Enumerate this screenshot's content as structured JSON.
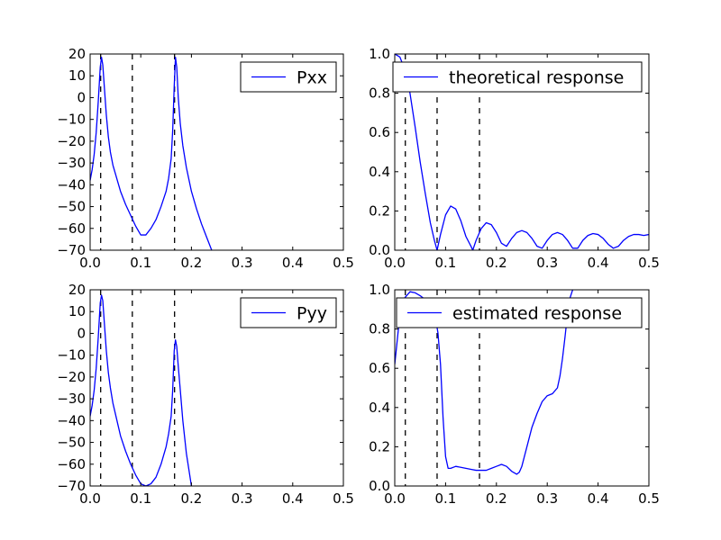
{
  "chart_data": [
    {
      "id": "pxx",
      "type": "line",
      "xlim": [
        0,
        0.5
      ],
      "ylim": [
        -70,
        20
      ],
      "xticks": [
        0,
        0.1,
        0.2,
        0.3,
        0.4,
        0.5
      ],
      "xtick_labels": [
        "0.0",
        "0.1",
        "0.2",
        "0.3",
        "0.4",
        "0.5"
      ],
      "yticks": [
        20,
        10,
        0,
        -10,
        -20,
        -30,
        -40,
        -50,
        -60,
        -70
      ],
      "ytick_labels": [
        "20",
        "10",
        "0",
        "−10",
        "−20",
        "−30",
        "−40",
        "−50",
        "−60",
        "−70"
      ],
      "vlines": [
        0.0208,
        0.0833,
        0.1667
      ],
      "legend_position": "upper-right",
      "series": [
        {
          "name": "Pxx",
          "color": "#0000ff",
          "x": [
            0,
            0.004,
            0.008,
            0.012,
            0.016,
            0.02,
            0.0225,
            0.025,
            0.028,
            0.032,
            0.036,
            0.04,
            0.045,
            0.05,
            0.055,
            0.06,
            0.07,
            0.08,
            0.09,
            0.1,
            0.11,
            0.12,
            0.13,
            0.14,
            0.15,
            0.155,
            0.16,
            0.163,
            0.166,
            0.1685,
            0.171,
            0.174,
            0.178,
            0.183,
            0.19,
            0.2,
            0.21,
            0.22,
            0.23,
            0.24
          ],
          "y": [
            -38,
            -33,
            -26,
            -16,
            -2,
            14,
            18.5,
            15,
            5,
            -8,
            -18,
            -25,
            -31,
            -35,
            -39,
            -43,
            -49,
            -54,
            -59,
            -63,
            -63,
            -60,
            -56,
            -50,
            -43,
            -37,
            -28,
            -15,
            5,
            18.5,
            14,
            0,
            -12,
            -22,
            -32,
            -43,
            -51,
            -58,
            -64,
            -70
          ]
        }
      ]
    },
    {
      "id": "theoretical",
      "type": "line",
      "xlim": [
        0,
        0.5
      ],
      "ylim": [
        0,
        1
      ],
      "xticks": [
        0,
        0.1,
        0.2,
        0.3,
        0.4,
        0.5
      ],
      "xtick_labels": [
        "0.0",
        "0.1",
        "0.2",
        "0.3",
        "0.4",
        "0.5"
      ],
      "yticks": [
        0,
        0.2,
        0.4,
        0.6,
        0.8,
        1
      ],
      "ytick_labels": [
        "0.0",
        "0.2",
        "0.4",
        "0.6",
        "0.8",
        "1.0"
      ],
      "vlines": [
        0.0208,
        0.0833,
        0.1667
      ],
      "legend_position": "upper-right",
      "series": [
        {
          "name": "theoretical response",
          "color": "#0000ff",
          "x": [
            0,
            0.01,
            0.02,
            0.03,
            0.04,
            0.05,
            0.06,
            0.07,
            0.078,
            0.0833,
            0.09,
            0.1,
            0.11,
            0.12,
            0.13,
            0.14,
            0.15,
            0.1535,
            0.16,
            0.17,
            0.18,
            0.19,
            0.2,
            0.21,
            0.22,
            0.23,
            0.24,
            0.25,
            0.26,
            0.27,
            0.28,
            0.29,
            0.3,
            0.31,
            0.32,
            0.33,
            0.34,
            0.35,
            0.36,
            0.37,
            0.38,
            0.39,
            0.4,
            0.41,
            0.42,
            0.43,
            0.44,
            0.45,
            0.46,
            0.47,
            0.48,
            0.49,
            0.5
          ],
          "y": [
            1.0,
            0.985,
            0.92,
            0.8,
            0.63,
            0.45,
            0.29,
            0.14,
            0.05,
            0.0,
            0.08,
            0.18,
            0.225,
            0.21,
            0.15,
            0.07,
            0.02,
            0.0,
            0.05,
            0.11,
            0.14,
            0.13,
            0.09,
            0.035,
            0.02,
            0.06,
            0.09,
            0.1,
            0.09,
            0.06,
            0.02,
            0.01,
            0.05,
            0.08,
            0.09,
            0.08,
            0.05,
            0.01,
            0.01,
            0.05,
            0.075,
            0.085,
            0.08,
            0.06,
            0.03,
            0.01,
            0.02,
            0.05,
            0.07,
            0.08,
            0.08,
            0.075,
            0.08
          ]
        }
      ]
    },
    {
      "id": "pyy",
      "type": "line",
      "xlim": [
        0,
        0.5
      ],
      "ylim": [
        -70,
        20
      ],
      "xticks": [
        0,
        0.1,
        0.2,
        0.3,
        0.4,
        0.5
      ],
      "xtick_labels": [
        "0.0",
        "0.1",
        "0.2",
        "0.3",
        "0.4",
        "0.5"
      ],
      "yticks": [
        20,
        10,
        0,
        -10,
        -20,
        -30,
        -40,
        -50,
        -60,
        -70
      ],
      "ytick_labels": [
        "20",
        "10",
        "0",
        "−10",
        "−20",
        "−30",
        "−40",
        "−50",
        "−60",
        "−70"
      ],
      "vlines": [
        0.0208,
        0.0833,
        0.1667
      ],
      "legend_position": "upper-right",
      "series": [
        {
          "name": "Pyy",
          "color": "#0000ff",
          "x": [
            0,
            0.004,
            0.008,
            0.012,
            0.016,
            0.02,
            0.0225,
            0.025,
            0.028,
            0.032,
            0.036,
            0.04,
            0.045,
            0.05,
            0.055,
            0.06,
            0.07,
            0.08,
            0.09,
            0.1,
            0.11,
            0.12,
            0.13,
            0.14,
            0.15,
            0.155,
            0.16,
            0.163,
            0.166,
            0.1685,
            0.171,
            0.174,
            0.178,
            0.183,
            0.19,
            0.2
          ],
          "y": [
            -38,
            -33,
            -26,
            -16,
            -2,
            14,
            17.5,
            15,
            5,
            -8,
            -18,
            -25,
            -32,
            -37,
            -42,
            -47,
            -54,
            -60,
            -65,
            -69,
            -70,
            -69,
            -66,
            -60,
            -52,
            -46,
            -38,
            -26,
            -8,
            -3,
            -6,
            -15,
            -26,
            -40,
            -55,
            -70
          ]
        }
      ]
    },
    {
      "id": "estimated",
      "type": "line",
      "xlim": [
        0,
        0.5
      ],
      "ylim": [
        0,
        1
      ],
      "xticks": [
        0,
        0.1,
        0.2,
        0.3,
        0.4,
        0.5
      ],
      "xtick_labels": [
        "0.0",
        "0.1",
        "0.2",
        "0.3",
        "0.4",
        "0.5"
      ],
      "yticks": [
        0,
        0.2,
        0.4,
        0.6,
        0.8,
        1
      ],
      "ytick_labels": [
        "0.0",
        "0.2",
        "0.4",
        "0.6",
        "0.8",
        "1.0"
      ],
      "vlines": [
        0.0208,
        0.0833,
        0.1667
      ],
      "legend_position": "upper-right",
      "series": [
        {
          "name": "estimated response",
          "color": "#0000ff",
          "x": [
            0,
            0.004,
            0.008,
            0.015,
            0.02,
            0.03,
            0.04,
            0.05,
            0.06,
            0.07,
            0.08,
            0.085,
            0.09,
            0.095,
            0.1,
            0.105,
            0.11,
            0.12,
            0.13,
            0.14,
            0.15,
            0.16,
            0.17,
            0.18,
            0.19,
            0.2,
            0.21,
            0.22,
            0.23,
            0.24,
            0.245,
            0.25,
            0.26,
            0.27,
            0.28,
            0.29,
            0.3,
            0.305,
            0.31,
            0.32,
            0.325,
            0.33,
            0.335,
            0.34,
            0.345,
            0.35
          ],
          "y": [
            0.62,
            0.72,
            0.82,
            0.92,
            0.96,
            0.99,
            0.985,
            0.97,
            0.95,
            0.91,
            0.86,
            0.78,
            0.62,
            0.35,
            0.15,
            0.09,
            0.09,
            0.1,
            0.095,
            0.09,
            0.085,
            0.08,
            0.08,
            0.08,
            0.09,
            0.1,
            0.11,
            0.1,
            0.075,
            0.06,
            0.07,
            0.1,
            0.2,
            0.3,
            0.37,
            0.43,
            0.46,
            0.465,
            0.47,
            0.5,
            0.56,
            0.65,
            0.76,
            0.88,
            0.96,
            1.0
          ]
        }
      ]
    }
  ]
}
